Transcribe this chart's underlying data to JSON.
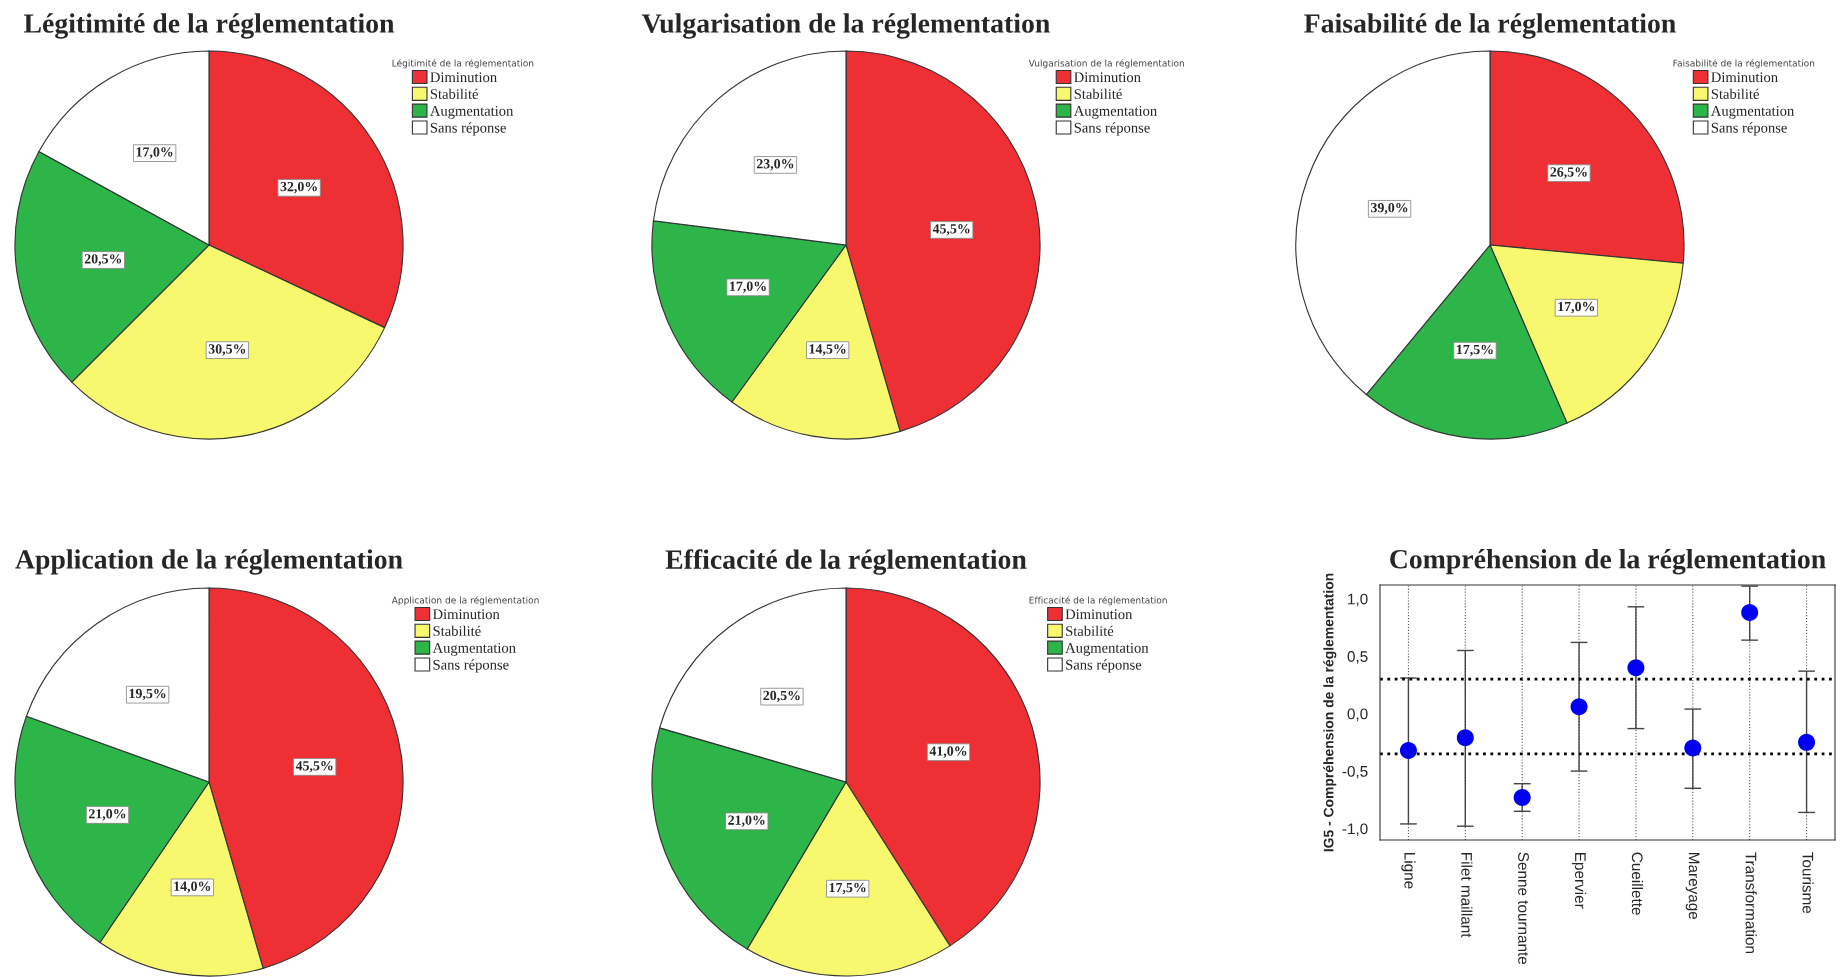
{
  "chart_data": [
    {
      "type": "pie",
      "title": "Légitimité de la réglementation",
      "legend_title": "Légitimité de la réglementation",
      "legend": "top right",
      "categories": [
        "Diminution",
        "Stabilité",
        "Augmentation",
        "Sans réponse"
      ],
      "values": [
        32.0,
        30.5,
        20.5,
        17.0
      ],
      "value_labels": [
        "32,0%",
        "30,5%",
        "20,5%",
        "17,0%"
      ],
      "colors": [
        "#ee3035",
        "#f8f86e",
        "#2db54a",
        "#ffffff"
      ]
    },
    {
      "type": "pie",
      "title": "Vulgarisation de la réglementation",
      "legend_title": "Vulgarisation de la réglementation",
      "legend": "top right",
      "categories": [
        "Diminution",
        "Stabilité",
        "Augmentation",
        "Sans réponse"
      ],
      "values": [
        45.5,
        14.5,
        17.0,
        23.0
      ],
      "value_labels": [
        "45,5%",
        "14,5%",
        "17,0%",
        "23,0%"
      ],
      "colors": [
        "#ee3035",
        "#f8f86e",
        "#2db54a",
        "#ffffff"
      ]
    },
    {
      "type": "pie",
      "title": "Faisabilité de la réglementation",
      "legend_title": "Faisabilité de la réglementation",
      "legend": "top right",
      "categories": [
        "Diminution",
        "Stabilité",
        "Augmentation",
        "Sans réponse"
      ],
      "values": [
        26.5,
        17.0,
        17.5,
        39.0
      ],
      "value_labels": [
        "26,5%",
        "17,0%",
        "17,5%",
        "39,0%"
      ],
      "colors": [
        "#ee3035",
        "#f8f86e",
        "#2db54a",
        "#ffffff"
      ]
    },
    {
      "type": "pie",
      "title": "Application de la réglementation",
      "legend_title": "Application de la réglementation",
      "legend": "top right",
      "categories": [
        "Diminution",
        "Stabilité",
        "Augmentation",
        "Sans réponse"
      ],
      "values": [
        45.5,
        14.0,
        21.0,
        19.5
      ],
      "value_labels": [
        "45,5%",
        "14,0%",
        "21,0%",
        "19,5%"
      ],
      "colors": [
        "#ee3035",
        "#f8f86e",
        "#2db54a",
        "#ffffff"
      ]
    },
    {
      "type": "pie",
      "title": "Efficacité de la réglementation",
      "legend_title": "Efficacité de la réglementation",
      "legend": "top right",
      "categories": [
        "Diminution",
        "Stabilité",
        "Augmentation",
        "Sans réponse"
      ],
      "values": [
        41.0,
        17.5,
        21.0,
        20.5
      ],
      "value_labels": [
        "41,0%",
        "17,5%",
        "21,0%",
        "20,5%"
      ],
      "colors": [
        "#ee3035",
        "#f8f86e",
        "#2db54a",
        "#ffffff"
      ]
    },
    {
      "type": "scatter",
      "title": "Compréhension de la réglementation",
      "ylabel": "IG5 - Compréhension de la réglementation",
      "categories": [
        "Ligne",
        "Filet maillant",
        "Senne tournante",
        "Epervier",
        "Cueillette",
        "Mareyage",
        "Transformation",
        "Tourisme"
      ],
      "series": [
        {
          "color": "#0000ee",
          "values": [
            -0.32,
            -0.21,
            -0.73,
            0.06,
            0.4,
            -0.3,
            0.88,
            -0.25
          ],
          "errors": [
            [
              -0.96,
              0.31
            ],
            [
              -0.98,
              0.55
            ],
            [
              -0.85,
              -0.61
            ],
            [
              -0.5,
              0.62
            ],
            [
              -0.13,
              0.93
            ],
            [
              -0.65,
              0.04
            ],
            [
              0.64,
              1.11
            ],
            [
              -0.86,
              0.37
            ]
          ]
        }
      ],
      "marker": "circle",
      "grid": "x",
      "ylim": [
        -1.1,
        1.12
      ],
      "yticks": [
        {
          "value": -1.0,
          "label": "-1,0"
        },
        {
          "value": -0.5,
          "label": "-0,5"
        },
        {
          "value": 0.0,
          "label": "0,0"
        },
        {
          "value": 0.5,
          "label": "0,5"
        },
        {
          "value": 1.0,
          "label": "1,0"
        }
      ],
      "ref_lines": [
        {
          "axis": "y",
          "value": 0.3,
          "line_style": "dotted"
        },
        {
          "axis": "y",
          "value": -0.35,
          "line_style": "dotted"
        }
      ]
    }
  ]
}
